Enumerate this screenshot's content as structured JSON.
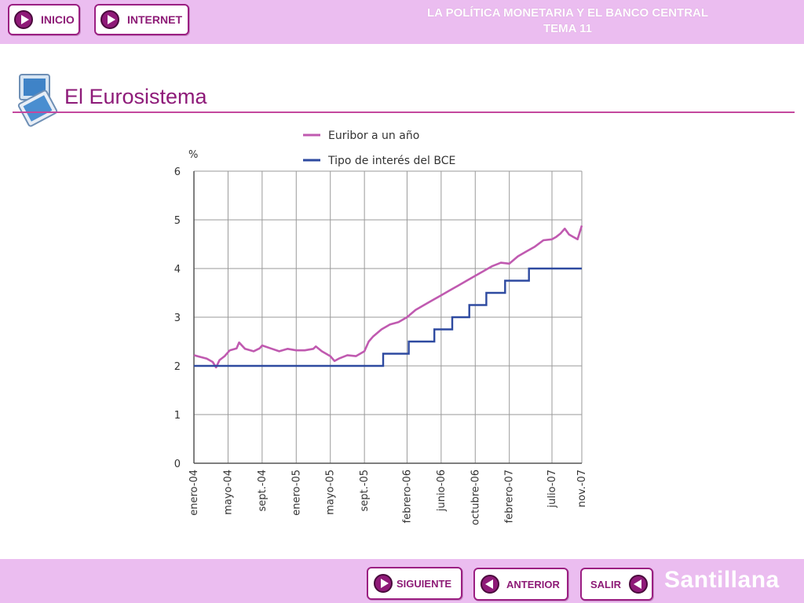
{
  "header": {
    "title_line1": "LA POLÍTICA MONETARIA Y EL BANCO CENTRAL",
    "title_line2": "TEMA 11",
    "inicio_label": "INICIO",
    "internet_label": "INTERNET"
  },
  "section": {
    "title": "El Eurosistema"
  },
  "footer": {
    "siguiente_label": "SIGUIENTE",
    "anterior_label": "ANTERIOR",
    "salir_label": "SALIR",
    "brand": "Santillana"
  },
  "colors": {
    "bar": "#ebbdf0",
    "accent": "#8e1b79",
    "euribor": "#c05ab0",
    "bce": "#2e4aa0"
  },
  "icons": {
    "inicio": "play-right-icon",
    "internet": "play-right-icon",
    "siguiente": "play-right-icon",
    "anterior": "play-left-icon",
    "salir": "play-left-icon",
    "section": "monitor-icon"
  },
  "chart_data": {
    "type": "line",
    "ylabel": "%",
    "ylim": [
      0,
      6
    ],
    "yticks": [
      "0",
      "1",
      "2",
      "3",
      "4",
      "5",
      "6"
    ],
    "xlabels": [
      "enero-04",
      "mayo-04",
      "sept.-04",
      "enero-05",
      "mayo-05",
      "sept.-05",
      "febrero-06",
      "junio-06",
      "octubre-06",
      "febrero-07",
      "julio-07",
      "nov.-07"
    ],
    "xlabel_months": [
      0,
      4,
      8,
      12,
      16,
      20,
      25,
      29,
      33,
      37,
      42,
      46
    ],
    "xlim_months": [
      0,
      45.5
    ],
    "grid": true,
    "legend_position": "top",
    "series": [
      {
        "name": "Euribor a un año",
        "points": [
          [
            0,
            2.22
          ],
          [
            0.8,
            2.18
          ],
          [
            1.5,
            2.15
          ],
          [
            2.2,
            2.08
          ],
          [
            2.6,
            1.97
          ],
          [
            3,
            2.12
          ],
          [
            3.6,
            2.2
          ],
          [
            4.2,
            2.32
          ],
          [
            5,
            2.36
          ],
          [
            5.3,
            2.48
          ],
          [
            6,
            2.35
          ],
          [
            7,
            2.3
          ],
          [
            7.7,
            2.36
          ],
          [
            8,
            2.42
          ],
          [
            9,
            2.36
          ],
          [
            10,
            2.3
          ],
          [
            11,
            2.35
          ],
          [
            12,
            2.32
          ],
          [
            13,
            2.32
          ],
          [
            14,
            2.35
          ],
          [
            14.3,
            2.4
          ],
          [
            15,
            2.3
          ],
          [
            16,
            2.2
          ],
          [
            16.5,
            2.1
          ],
          [
            17,
            2.15
          ],
          [
            18,
            2.22
          ],
          [
            19,
            2.2
          ],
          [
            20,
            2.3
          ],
          [
            20.5,
            2.5
          ],
          [
            21,
            2.6
          ],
          [
            22,
            2.75
          ],
          [
            23,
            2.85
          ],
          [
            24,
            2.9
          ],
          [
            25,
            3.0
          ],
          [
            26,
            3.15
          ],
          [
            27,
            3.25
          ],
          [
            28,
            3.35
          ],
          [
            29,
            3.45
          ],
          [
            30,
            3.55
          ],
          [
            31,
            3.65
          ],
          [
            32,
            3.75
          ],
          [
            33,
            3.85
          ],
          [
            34,
            3.95
          ],
          [
            35,
            4.05
          ],
          [
            36,
            4.12
          ],
          [
            37,
            4.1
          ],
          [
            38,
            4.25
          ],
          [
            39,
            4.35
          ],
          [
            40,
            4.45
          ],
          [
            41,
            4.58
          ],
          [
            42,
            4.6
          ],
          [
            42.5,
            4.65
          ],
          [
            43,
            4.72
          ],
          [
            43.5,
            4.82
          ],
          [
            44,
            4.7
          ],
          [
            44.5,
            4.65
          ],
          [
            45,
            4.6
          ],
          [
            45.5,
            4.88
          ]
        ]
      },
      {
        "name": "Tipo de interés del BCE",
        "steps": [
          [
            0,
            2.0
          ],
          [
            22.2,
            2.25
          ],
          [
            25.2,
            2.5
          ],
          [
            28.2,
            2.75
          ],
          [
            30.3,
            3.0
          ],
          [
            32.3,
            3.25
          ],
          [
            34.3,
            3.5
          ],
          [
            36.5,
            3.75
          ],
          [
            39.3,
            4.0
          ],
          [
            45.5,
            4.0
          ]
        ]
      }
    ]
  }
}
